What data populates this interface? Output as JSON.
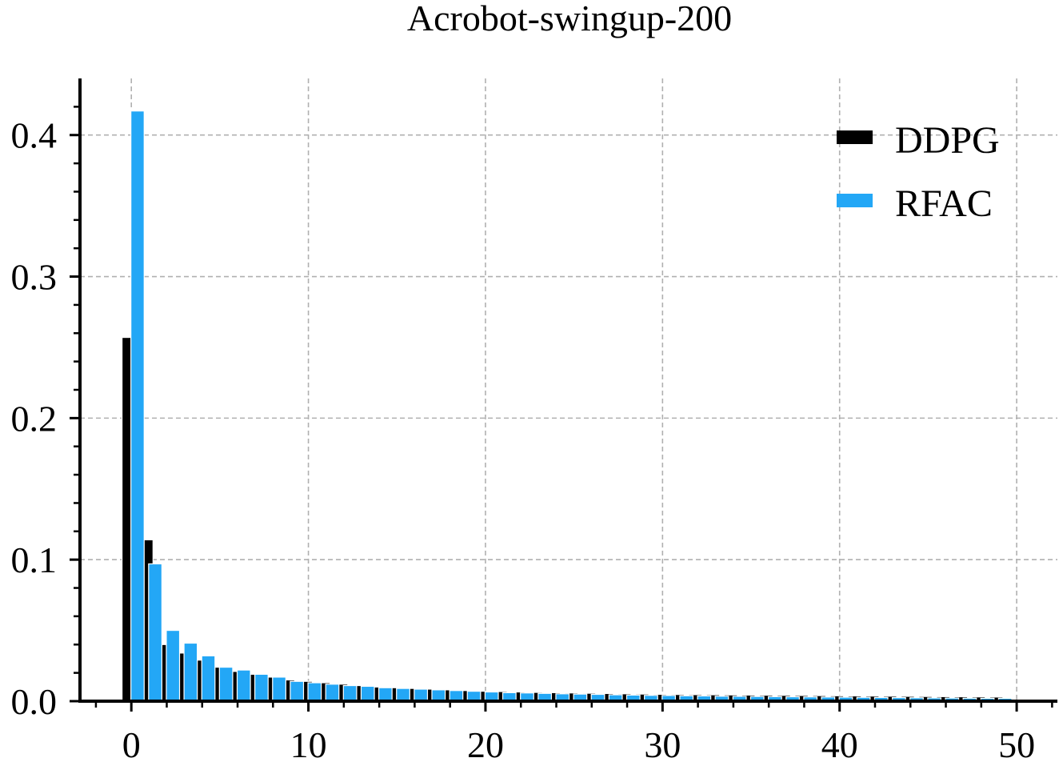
{
  "chart_data": {
    "type": "bar",
    "title": "Acrobot-swingup-200",
    "xlabel": "",
    "ylabel": "",
    "xlim": [
      -2.9,
      52.3
    ],
    "ylim": [
      0,
      0.44
    ],
    "xticks": [
      0,
      10,
      20,
      30,
      40,
      50
    ],
    "yticks": [
      0.0,
      0.1,
      0.2,
      0.3,
      0.4
    ],
    "xtick_labels": [
      "0",
      "10",
      "20",
      "30",
      "40",
      "50"
    ],
    "ytick_labels": [
      "0.0",
      "0.1",
      "0.2",
      "0.3",
      "0.4"
    ],
    "grid": true,
    "legend_position": "top-right",
    "categories": [
      0,
      1,
      2,
      3,
      4,
      5,
      6,
      7,
      8,
      9,
      10,
      11,
      12,
      13,
      14,
      15,
      16,
      17,
      18,
      19,
      20,
      21,
      22,
      23,
      24,
      25,
      26,
      27,
      28,
      29,
      30,
      31,
      32,
      33,
      34,
      35,
      36,
      37,
      38,
      39,
      40,
      41,
      42,
      43,
      44,
      45,
      46,
      47,
      48,
      49
    ],
    "series": [
      {
        "name": "DDPG",
        "color": "#000000",
        "values": [
          0.257,
          0.114,
          0.04,
          0.034,
          0.029,
          0.024,
          0.021,
          0.019,
          0.017,
          0.015,
          0.014,
          0.013,
          0.012,
          0.011,
          0.01,
          0.0095,
          0.009,
          0.0085,
          0.008,
          0.0075,
          0.007,
          0.0068,
          0.0065,
          0.0062,
          0.006,
          0.0058,
          0.0056,
          0.0054,
          0.0052,
          0.005,
          0.0048,
          0.0047,
          0.0046,
          0.0045,
          0.0044,
          0.0043,
          0.0042,
          0.0041,
          0.004,
          0.0039,
          0.0038,
          0.0037,
          0.0036,
          0.0035,
          0.0034,
          0.0033,
          0.0032,
          0.0031,
          0.003,
          0.0029
        ]
      },
      {
        "name": "RFAC",
        "color": "#23a7f6",
        "values": [
          0.417,
          0.097,
          0.05,
          0.041,
          0.032,
          0.024,
          0.022,
          0.019,
          0.017,
          0.014,
          0.013,
          0.012,
          0.011,
          0.0105,
          0.0095,
          0.009,
          0.0085,
          0.008,
          0.0075,
          0.007,
          0.0065,
          0.006,
          0.0058,
          0.0055,
          0.0052,
          0.005,
          0.0048,
          0.0045,
          0.0043,
          0.0041,
          0.004,
          0.0038,
          0.0037,
          0.0035,
          0.0034,
          0.0033,
          0.0032,
          0.0031,
          0.003,
          0.0029,
          0.0028,
          0.0027,
          0.0026,
          0.0025,
          0.0024,
          0.0023,
          0.0022,
          0.0021,
          0.002,
          0.002
        ]
      }
    ]
  }
}
